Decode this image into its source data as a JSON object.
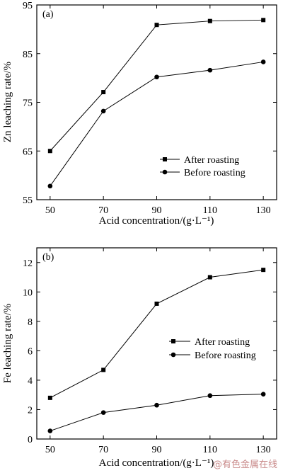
{
  "chart_data": [
    {
      "type": "line",
      "panel_label": "(a)",
      "x": [
        50,
        70,
        90,
        110,
        130
      ],
      "xlim": [
        45,
        135
      ],
      "ylim": [
        55,
        95
      ],
      "xticks": [
        50,
        70,
        90,
        110,
        130
      ],
      "yticks": [
        55,
        65,
        75,
        85,
        95
      ],
      "xlabel": "Acid concentration/(g·L⁻¹)",
      "ylabel": "Zn leaching rate/%",
      "legend_position": "lower-right",
      "series": [
        {
          "name": "After roasting",
          "marker": "square",
          "values": [
            65.0,
            77.1,
            90.9,
            91.7,
            91.9
          ]
        },
        {
          "name": "Before roasting",
          "marker": "circle",
          "values": [
            57.8,
            73.2,
            80.2,
            81.6,
            83.3
          ]
        }
      ]
    },
    {
      "type": "line",
      "panel_label": "(b)",
      "x": [
        50,
        70,
        90,
        110,
        130
      ],
      "xlim": [
        45,
        135
      ],
      "ylim": [
        0,
        13
      ],
      "xticks": [
        50,
        70,
        90,
        110,
        130
      ],
      "yticks": [
        0,
        2,
        4,
        6,
        8,
        10,
        12
      ],
      "xlabel": "Acid concentration/(g·L⁻¹)",
      "ylabel": "Fe leaching rate/%",
      "legend_position": "center-right",
      "series": [
        {
          "name": "After roasting",
          "marker": "square",
          "values": [
            2.8,
            4.7,
            9.2,
            11.0,
            11.5
          ]
        },
        {
          "name": "Before roasting",
          "marker": "circle",
          "values": [
            0.55,
            1.8,
            2.3,
            2.95,
            3.05
          ]
        }
      ]
    }
  ],
  "watermark": "@有色金属在线"
}
